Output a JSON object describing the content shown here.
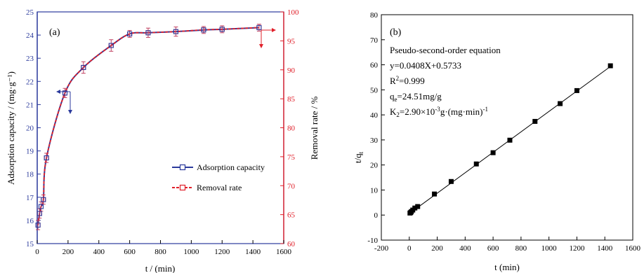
{
  "chart_data": [
    {
      "type": "line",
      "panel_label": "(a)",
      "xlabel": "t / (min)",
      "ylabel": "Adsorption capacity / (mg·g⁻¹)",
      "y2label": "Removal rate / %",
      "xlim": [
        0,
        1600
      ],
      "ylim": [
        15,
        25
      ],
      "y2lim": [
        60,
        100
      ],
      "x_ticks": [
        "0",
        "200",
        "400",
        "600",
        "800",
        "1000",
        "1200",
        "1400",
        "1600"
      ],
      "y_ticks": [
        "15",
        "16",
        "17",
        "18",
        "19",
        "20",
        "21",
        "22",
        "23",
        "24",
        "25"
      ],
      "y2_ticks": [
        "60",
        "65",
        "70",
        "75",
        "80",
        "85",
        "90",
        "95",
        "100"
      ],
      "grid": false,
      "legend_position": "center-right",
      "x": [
        5,
        15,
        25,
        40,
        60,
        180,
        300,
        480,
        600,
        720,
        900,
        1080,
        1200,
        1440
      ],
      "series": [
        {
          "name": "Adsorption capacity",
          "axis": "left",
          "color": "#2b3a9c",
          "marker": "open-square",
          "values": [
            15.8,
            16.3,
            16.6,
            16.9,
            18.7,
            21.5,
            22.6,
            23.55,
            24.05,
            24.1,
            24.15,
            24.22,
            24.25,
            24.32
          ],
          "error": [
            0.2,
            0.2,
            0.2,
            0.2,
            0.2,
            0.2,
            0.25,
            0.25,
            0.15,
            0.2,
            0.2,
            0.15,
            0.15,
            0.15
          ]
        },
        {
          "name": "Removal rate",
          "axis": "right",
          "color": "#e0202a",
          "marker": "open-square",
          "values": [
            63.2,
            65.2,
            66.4,
            67.6,
            74.8,
            86.0,
            90.4,
            94.2,
            96.2,
            96.4,
            96.6,
            96.9,
            97.0,
            97.3
          ]
        }
      ]
    },
    {
      "type": "scatter",
      "panel_label": "(b)",
      "xlabel": "t (min)",
      "ylabel": "t/q",
      "ylabel_sub": "t",
      "xlim": [
        -200,
        1600
      ],
      "ylim": [
        -10,
        80
      ],
      "x_ticks": [
        "-200",
        "0",
        "200",
        "400",
        "600",
        "800",
        "1000",
        "1200",
        "1400",
        "1600"
      ],
      "y_ticks": [
        "-10",
        "0",
        "10",
        "20",
        "30",
        "40",
        "50",
        "60",
        "70",
        "80"
      ],
      "grid": false,
      "points": {
        "color": "#000000",
        "marker": "filled-square",
        "x": [
          5,
          10,
          15,
          25,
          40,
          60,
          180,
          300,
          480,
          600,
          720,
          900,
          1080,
          1200,
          1440
        ],
        "y": [
          0.8,
          1.0,
          1.4,
          2.0,
          2.8,
          3.4,
          8.4,
          13.4,
          20.4,
          24.9,
          29.9,
          37.4,
          44.5,
          49.7,
          59.6
        ]
      },
      "fit": {
        "slope": 0.0408,
        "intercept": 0.5733
      },
      "annotations": {
        "title": "Pseudo-second-order equation",
        "equation": "y=0.0408X+0.5733",
        "r2_base": "R",
        "r2_sup": "2",
        "r2_rest": "=0.999",
        "qe_base": "q",
        "qe_sub": "e",
        "qe_rest": "=24.51mg/g",
        "k2_base": "K",
        "k2_sub": "2",
        "k2_mid": "=2.90×10",
        "k2_sup": "-3",
        "k2_tail": "g·(mg·min)",
        "k2_sup2": "-1"
      }
    }
  ]
}
